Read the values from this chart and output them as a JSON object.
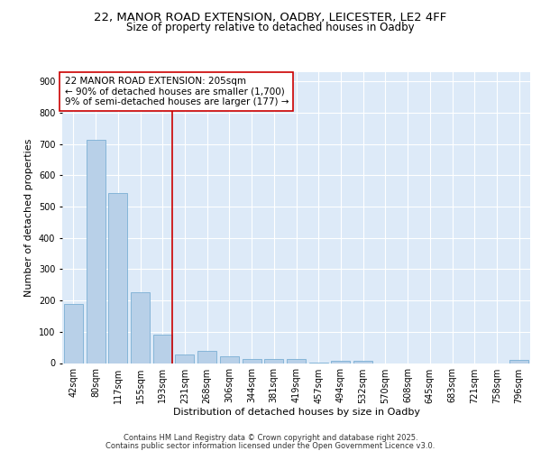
{
  "title1": "22, MANOR ROAD EXTENSION, OADBY, LEICESTER, LE2 4FF",
  "title2": "Size of property relative to detached houses in Oadby",
  "xlabel": "Distribution of detached houses by size in Oadby",
  "ylabel": "Number of detached properties",
  "categories": [
    "42sqm",
    "80sqm",
    "117sqm",
    "155sqm",
    "193sqm",
    "231sqm",
    "268sqm",
    "306sqm",
    "344sqm",
    "381sqm",
    "419sqm",
    "457sqm",
    "494sqm",
    "532sqm",
    "570sqm",
    "608sqm",
    "645sqm",
    "683sqm",
    "721sqm",
    "758sqm",
    "796sqm"
  ],
  "values": [
    188,
    715,
    545,
    225,
    90,
    28,
    38,
    23,
    13,
    12,
    12,
    2,
    8,
    8,
    0,
    0,
    0,
    0,
    0,
    0,
    10
  ],
  "bar_color": "#b8d0e8",
  "bar_edge_color": "#7aafd4",
  "vline_color": "#cc0000",
  "vline_pos": 4.42,
  "annotation_text": "22 MANOR ROAD EXTENSION: 205sqm\n← 90% of detached houses are smaller (1,700)\n9% of semi-detached houses are larger (177) →",
  "annotation_box_facecolor": "#ffffff",
  "annotation_box_edgecolor": "#cc0000",
  "ylim": [
    0,
    930
  ],
  "yticks": [
    0,
    100,
    200,
    300,
    400,
    500,
    600,
    700,
    800,
    900
  ],
  "footer1": "Contains HM Land Registry data © Crown copyright and database right 2025.",
  "footer2": "Contains public sector information licensed under the Open Government Licence v3.0.",
  "bg_color": "#ddeaf8",
  "fig_bg_color": "#ffffff",
  "title1_fontsize": 9.5,
  "title2_fontsize": 8.5,
  "xlabel_fontsize": 8,
  "ylabel_fontsize": 8,
  "tick_fontsize": 7,
  "annotation_fontsize": 7.5,
  "footer_fontsize": 6
}
